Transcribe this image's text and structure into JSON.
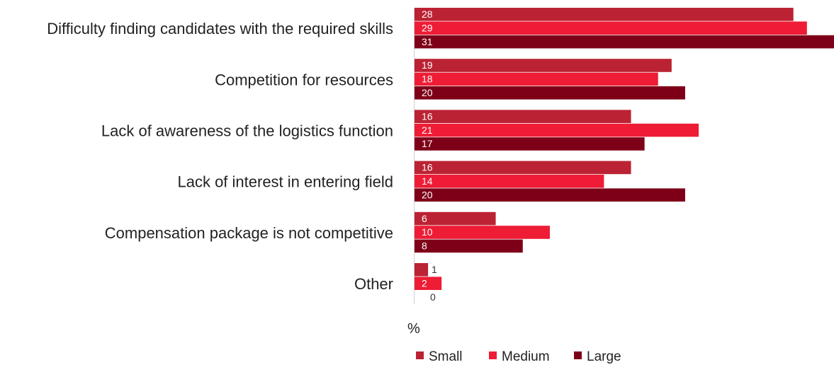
{
  "chart_data": {
    "type": "bar",
    "orientation": "horizontal",
    "categories": [
      "Difficulty finding candidates with the required skills",
      "Competition for resources",
      "Lack of awareness of the logistics function",
      "Lack of interest in entering field",
      "Compensation package is not competitive",
      "Other"
    ],
    "series": [
      {
        "name": "Small",
        "color": "#bb2233",
        "values": [
          28,
          19,
          16,
          16,
          6,
          1
        ]
      },
      {
        "name": "Medium",
        "color": "#ee1c35",
        "values": [
          29,
          18,
          21,
          14,
          10,
          2
        ]
      },
      {
        "name": "Large",
        "color": "#7e0018",
        "values": [
          31,
          20,
          17,
          20,
          8,
          0
        ]
      }
    ],
    "unit_label": "%",
    "xlim": [
      0,
      31
    ],
    "grid": false,
    "legend_position": "bottom"
  }
}
